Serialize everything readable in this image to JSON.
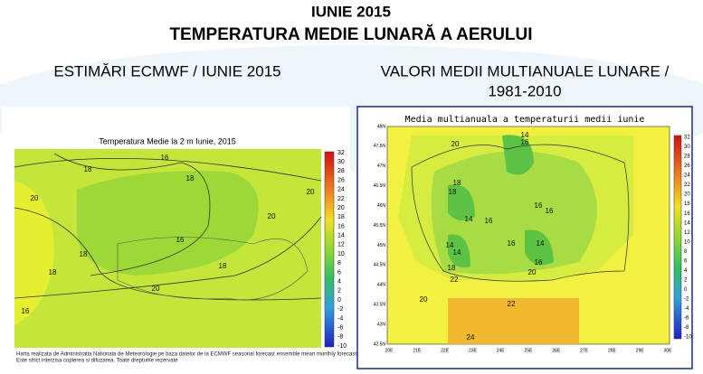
{
  "header": {
    "title": "IUNIE 2015",
    "subtitle": "TEMPERATURA MEDIE LUNARĂ A AERULUI"
  },
  "left": {
    "heading": "ESTIMĂRI ECMWF / IUNIE 2015",
    "map_title": "Temperatura Medie la 2 m Iunie, 2015",
    "colorbar": [
      32,
      30,
      28,
      26,
      24,
      22,
      20,
      18,
      16,
      14,
      12,
      10,
      8,
      6,
      4,
      2,
      0,
      -2,
      -4,
      -6,
      -8,
      -10
    ],
    "contour_labels": [
      18,
      16,
      18,
      20,
      16,
      18,
      20,
      18,
      20,
      16,
      18,
      20
    ],
    "footnote": [
      "Harta realizata de Administratia Nationala de Meteorologie pe baza datelor de la ECMWF seasonal forecast ensemble mean monthly forecasts.",
      "Este strict interzisa copierea si difuzarea. Toate drepturile rezervate"
    ]
  },
  "right": {
    "heading": [
      "VALORI MEDII MULTIANUALE LUNARE /",
      "1981-2010"
    ],
    "map_title": "Media multianuala a temperaturii medii iunie",
    "lat_labels": [
      "48N",
      "47.5N",
      "47N",
      "46.5N",
      "46N",
      "45.5N",
      "45N",
      "44.5N",
      "44N",
      "43.5N",
      "43N",
      "42.5N"
    ],
    "lon_labels": [
      "20E",
      "21E",
      "22E",
      "23E",
      "24E",
      "25E",
      "26E",
      "27E",
      "28E",
      "29E",
      "30E"
    ],
    "colorbar": [
      32,
      30,
      28,
      26,
      24,
      22,
      20,
      18,
      16,
      14,
      12,
      10,
      8,
      6,
      4,
      2,
      0,
      -2,
      -4,
      -6,
      -8,
      -10
    ],
    "contour_labels": [
      14,
      16,
      20,
      18,
      18,
      14,
      16,
      16,
      16,
      14,
      14,
      16,
      14,
      16,
      20,
      18,
      22,
      20,
      22,
      24
    ]
  }
}
